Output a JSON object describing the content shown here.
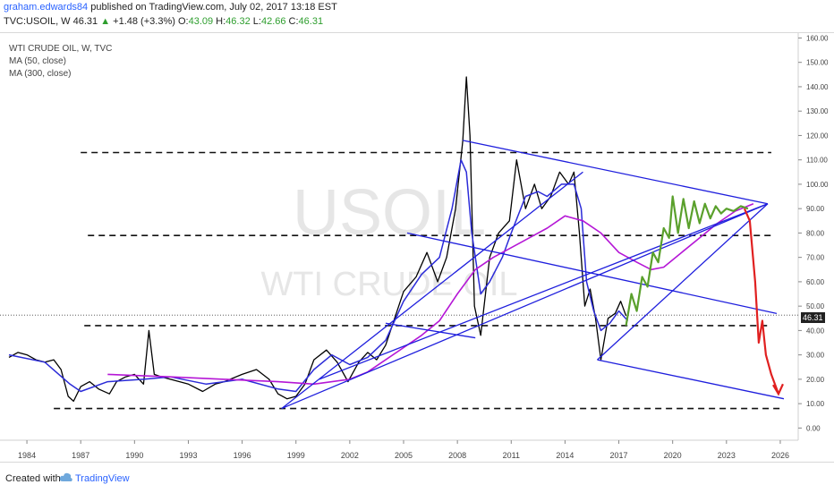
{
  "header": {
    "author": "graham.edwards84",
    "published": "published on TradingView.com, July 02, 2017 13:18 EST",
    "symbol_line_prefix": "TVC:USOIL, W",
    "last": "46.31",
    "change": "+1.48 (+3.3%)",
    "ohlc_o_label": "O:",
    "ohlc_o": "43.09",
    "ohlc_h_label": "H:",
    "ohlc_h": "46.32",
    "ohlc_l_label": "L:",
    "ohlc_l": "42.66",
    "ohlc_c_label": "C:",
    "ohlc_c": "46.31"
  },
  "legend": {
    "title": "WTI CRUDE OIL, W, TVC",
    "ma50": "MA (50, close)",
    "ma300": "MA (300, close)"
  },
  "watermark": {
    "symbol": "USOIL",
    "name": "WTI CRUDE OIL"
  },
  "footer": {
    "created_with": "Created with",
    "brand": "TradingView"
  },
  "price_marker": "46.31",
  "colors": {
    "price": "#000000",
    "ma50": "#2b2bd8",
    "ma300": "#b517d6",
    "trendline": "#1f1fdd",
    "projection_green": "#5aa02c",
    "projection_red": "#e02020",
    "dashed": "#111111"
  },
  "chart_data": {
    "type": "line",
    "title": "WTI CRUDE OIL, W, TVC",
    "x_tick_labels": [
      "1984",
      "1987",
      "1990",
      "1993",
      "1996",
      "1999",
      "2002",
      "2005",
      "2008",
      "2011",
      "2014",
      "2017",
      "2020",
      "2023",
      "2026"
    ],
    "y_tick_labels": [
      "0.00",
      "10.00",
      "20.00",
      "30.00",
      "40.00",
      "50.00",
      "60.00",
      "70.00",
      "80.00",
      "90.00",
      "100.00",
      "110.00",
      "120.00",
      "130.00",
      "140.00",
      "150.00",
      "160.00"
    ],
    "xlim": [
      1982.5,
      2027.0
    ],
    "ylim": [
      -5,
      162
    ],
    "series": [
      {
        "name": "TVC:USOIL",
        "x": [
          1983.0,
          1983.5,
          1984.0,
          1984.5,
          1985.0,
          1985.5,
          1985.9,
          1986.3,
          1986.6,
          1987.0,
          1987.5,
          1988.0,
          1988.6,
          1989.0,
          1989.5,
          1990.0,
          1990.5,
          1990.8,
          1991.1,
          1991.5,
          1992.0,
          1993.0,
          1993.8,
          1994.5,
          1995.0,
          1996.0,
          1996.8,
          1997.5,
          1998.0,
          1998.5,
          1999.0,
          1999.5,
          2000.0,
          2000.7,
          2001.3,
          2001.9,
          2002.5,
          2003.0,
          2003.5,
          2004.0,
          2004.5,
          2005.0,
          2005.7,
          2006.3,
          2006.9,
          2007.4,
          2007.9,
          2008.3,
          2008.5,
          2008.7,
          2008.95,
          2009.3,
          2009.8,
          2010.3,
          2010.9,
          2011.3,
          2011.8,
          2012.3,
          2012.7,
          2013.2,
          2013.7,
          2014.2,
          2014.5,
          2014.8,
          2015.1,
          2015.4,
          2015.7,
          2016.0,
          2016.4,
          2016.8,
          2017.1,
          2017.4
        ],
        "y": [
          29,
          31,
          30,
          28,
          27,
          28,
          24,
          13,
          11,
          17,
          19,
          16,
          14,
          19,
          21,
          22,
          18,
          40,
          22,
          21,
          20,
          18,
          15,
          18,
          19,
          22,
          24,
          20,
          14,
          12,
          13,
          18,
          28,
          32,
          27,
          19,
          27,
          31,
          28,
          34,
          45,
          56,
          62,
          72,
          60,
          70,
          90,
          118,
          144,
          120,
          50,
          38,
          70,
          80,
          85,
          110,
          90,
          100,
          90,
          95,
          105,
          100,
          105,
          80,
          50,
          57,
          45,
          28,
          45,
          47,
          52,
          46
        ]
      },
      {
        "name": "MA (50, close)",
        "x": [
          1983.0,
          1985.0,
          1986.4,
          1987.0,
          1988.5,
          1990.5,
          1992.0,
          1994.0,
          1996.0,
          1998.0,
          1999.0,
          2000.0,
          2001.0,
          2002.0,
          2003.0,
          2004.0,
          2005.0,
          2006.0,
          2007.0,
          2007.7,
          2008.2,
          2008.5,
          2008.8,
          2009.3,
          2009.8,
          2010.5,
          2011.0,
          2011.8,
          2012.5,
          2013.0,
          2013.8,
          2014.5,
          2014.9,
          2015.2,
          2015.6,
          2016.0,
          2016.5,
          2017.0,
          2017.5
        ],
        "y": [
          30,
          27,
          18,
          15,
          19,
          20,
          21,
          18,
          20,
          16,
          15,
          24,
          30,
          26,
          29,
          36,
          52,
          63,
          70,
          90,
          110,
          105,
          80,
          55,
          60,
          70,
          80,
          95,
          97,
          95,
          100,
          100,
          90,
          60,
          48,
          40,
          43,
          48,
          44
        ]
      },
      {
        "name": "MA (300, close)",
        "x": [
          1988.5,
          1992.0,
          1995.0,
          1998.0,
          2000.0,
          2002.0,
          2003.0,
          2004.0,
          2005.0,
          2006.0,
          2007.0,
          2008.0,
          2009.0,
          2010.0,
          2011.0,
          2012.0,
          2013.0,
          2014.0,
          2015.0,
          2016.0,
          2017.0,
          2018.0,
          2018.8,
          2019.5,
          2020.5,
          2021.5,
          2022.5,
          2023.5,
          2024.5
        ],
        "y": [
          22,
          21,
          20,
          19,
          18,
          20,
          23,
          28,
          33,
          38,
          44,
          55,
          65,
          70,
          74,
          78,
          82,
          87,
          85,
          80,
          72,
          68,
          65,
          66,
          72,
          78,
          84,
          89,
          92
        ]
      }
    ],
    "annotations": {
      "horizontal_dashed_levels": [
        113,
        79,
        42,
        8
      ],
      "price_marker": 46.31
    }
  }
}
